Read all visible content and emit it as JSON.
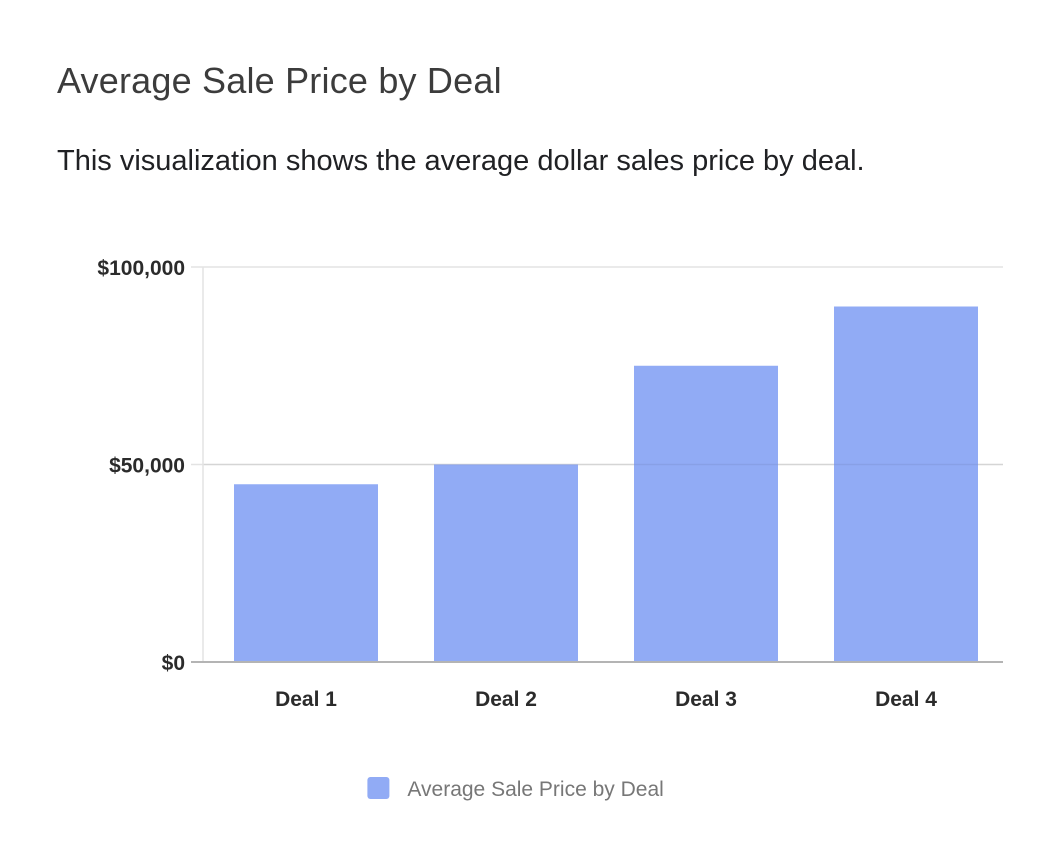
{
  "header": {
    "title": "Average Sale Price by Deal",
    "description": "This visualization shows the average dollar sales price by deal."
  },
  "chart_data": {
    "type": "bar",
    "categories": [
      "Deal 1",
      "Deal 2",
      "Deal 3",
      "Deal 4"
    ],
    "series": [
      {
        "name": "Average Sale Price by Deal",
        "values": [
          45000,
          50000,
          75000,
          90000
        ],
        "color": "#91abf5"
      }
    ],
    "title": "Average Sale Price by Deal",
    "xlabel": "",
    "ylabel": "",
    "ylim": [
      0,
      100000
    ],
    "yticks": [
      0,
      50000,
      100000
    ],
    "ytick_labels": [
      "$0",
      "$50,000",
      "$100,000"
    ],
    "grid": true,
    "legend": "bottom-center",
    "gridline_color": "#e3e3e3",
    "axis_color": "#b4b4b4"
  }
}
